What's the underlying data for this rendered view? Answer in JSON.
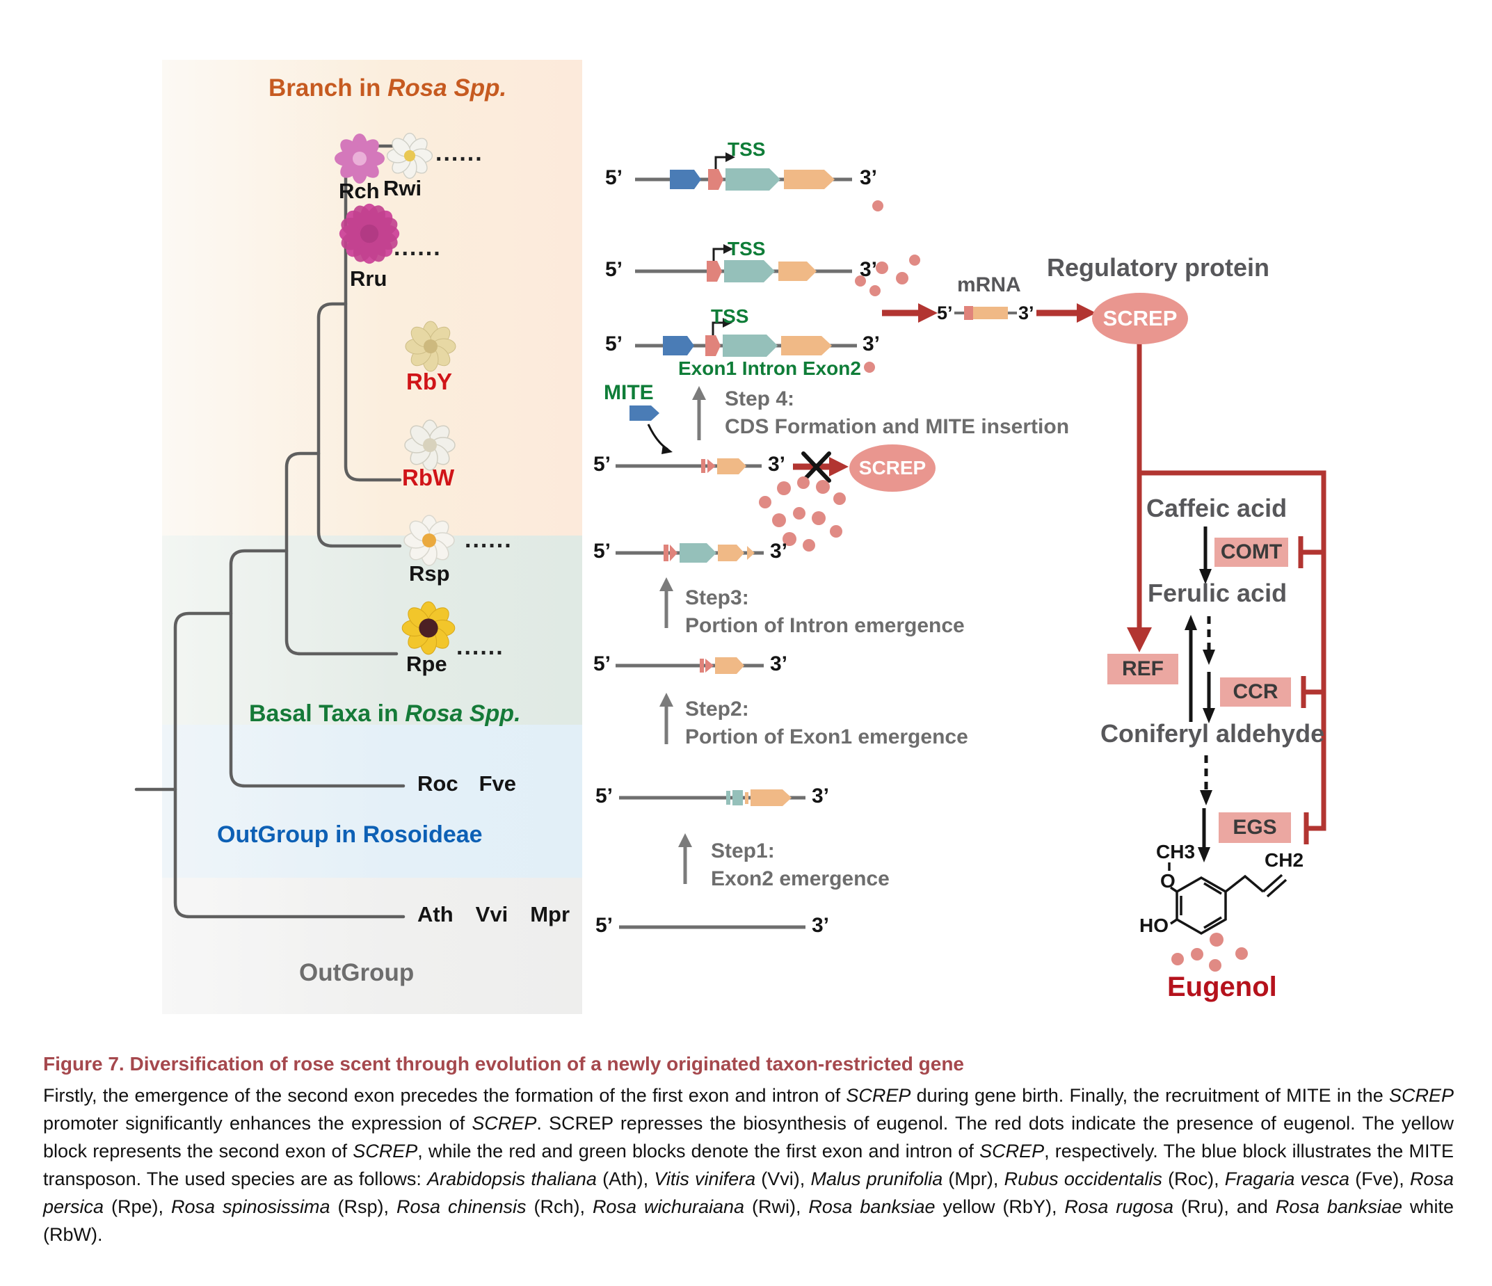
{
  "palette": {
    "accent_red": "#b23531",
    "salmon_exon1": "#e0837b",
    "teal_intron": "#95c0ba",
    "orange_exon2": "#f0b986",
    "blue_mite": "#4a7cb6",
    "dot_pink": "#e08a84",
    "oval_pink": "#e9968f",
    "enzyme_pink": "#eba7a1",
    "green_label": "#0f7d38",
    "branch_orange": "#c65a20",
    "basal_green": "#157a38",
    "outgroup_blue": "#0d60b5",
    "gray_label": "#6d6d6d",
    "eugenol_red": "#b5121c",
    "species_red": "#d01418"
  },
  "tree": {
    "branch_title": [
      {
        "t": "Branch in "
      },
      {
        "t": "Rosa Spp.",
        "i": true
      }
    ],
    "basal_title": [
      {
        "t": "Basal Taxa in "
      },
      {
        "t": "Rosa Spp.",
        "i": true
      }
    ],
    "outgroup_rosoideae": "OutGroup in Rosoideae",
    "outgroup": "OutGroup",
    "ellipsis": "......",
    "species": {
      "rch": "Rch",
      "rwi": "Rwi",
      "rru": "Rru",
      "rby": "RbY",
      "rbw": "RbW",
      "rsp": "Rsp",
      "rpe": "Rpe",
      "roc": "Roc",
      "fve": "Fve",
      "ath": "Ath",
      "vvi": "Vvi",
      "mpr": "Mpr"
    },
    "flower_colors": {
      "rch": "pink",
      "rwi": "white",
      "rru": "magenta-pink",
      "rby": "pale-yellow",
      "rbw": "white",
      "rsp": "white-orange-center",
      "rpe": "yellow-dark-center"
    }
  },
  "gene": {
    "five": "5’",
    "three": "3’",
    "tss": "TSS",
    "mite": "MITE",
    "exon_labels": "Exon1 Intron  Exon2"
  },
  "steps": {
    "s4_title": "Step 4:",
    "s4_desc": "CDS Formation and MITE insertion",
    "s3_title": "Step3:",
    "s3_desc": "Portion of Intron emergence",
    "s2_title": "Step2:",
    "s2_desc": "Portion of Exon1 emergence",
    "s1_title": "Step1:",
    "s1_desc": "Exon2 emergence"
  },
  "expression": {
    "mrna": "mRNA",
    "regulatory_protein": "Regulatory protein",
    "screp": "SCREP"
  },
  "pathway": {
    "caffeic": "Caffeic acid",
    "ferulic": "Ferulic acid",
    "coniferyl": "Coniferyl aldehyde",
    "comt": "COMT",
    "ref": "REF",
    "ccr": "CCR",
    "egs": "EGS",
    "eugenol": "Eugenol",
    "ch3": "CH3",
    "o": "O",
    "ho": "HO",
    "ch2": "CH2"
  },
  "caption": {
    "title": "Figure 7.  Diversification of rose scent through evolution of a newly originated taxon-restricted gene",
    "body": [
      {
        "t": "Firstly, the emergence of the second exon precedes the formation of the first exon and intron of "
      },
      {
        "t": "SCREP",
        "i": true
      },
      {
        "t": " during gene birth. Finally, the recruitment of MITE in the "
      },
      {
        "t": "SCREP",
        "i": true
      },
      {
        "t": " promoter significantly enhances the expression of "
      },
      {
        "t": "SCREP",
        "i": true
      },
      {
        "t": ". SCREP represses the biosynthesis of eugenol. The red dots indicate the presence of eugenol. The yellow block represents the second exon of "
      },
      {
        "t": "SCREP",
        "i": true
      },
      {
        "t": ", while the red and green blocks denote the first exon and intron of "
      },
      {
        "t": "SCREP",
        "i": true
      },
      {
        "t": ", respectively. The blue block illustrates the MITE transposon. The used species are as follows: "
      },
      {
        "t": "Arabidopsis thaliana",
        "i": true
      },
      {
        "t": " (Ath), "
      },
      {
        "t": "Vitis vinifera",
        "i": true
      },
      {
        "t": " (Vvi), "
      },
      {
        "t": "Malus prunifolia",
        "i": true
      },
      {
        "t": " (Mpr), "
      },
      {
        "t": "Rubus occidentalis",
        "i": true
      },
      {
        "t": " (Roc), "
      },
      {
        "t": "Fragaria vesca",
        "i": true
      },
      {
        "t": " (Fve), "
      },
      {
        "t": "Rosa persica",
        "i": true
      },
      {
        "t": " (Rpe), "
      },
      {
        "t": "Rosa spinosissima",
        "i": true
      },
      {
        "t": " (Rsp), "
      },
      {
        "t": "Rosa chinensis",
        "i": true
      },
      {
        "t": " (Rch), "
      },
      {
        "t": "Rosa wichuraiana",
        "i": true
      },
      {
        "t": " (Rwi), "
      },
      {
        "t": "Rosa banksiae",
        "i": true
      },
      {
        "t": " yellow (RbY), "
      },
      {
        "t": "Rosa rugosa",
        "i": true
      },
      {
        "t": " (Rru), and "
      },
      {
        "t": "Rosa banksiae",
        "i": true
      },
      {
        "t": " white (RbW)."
      }
    ]
  }
}
